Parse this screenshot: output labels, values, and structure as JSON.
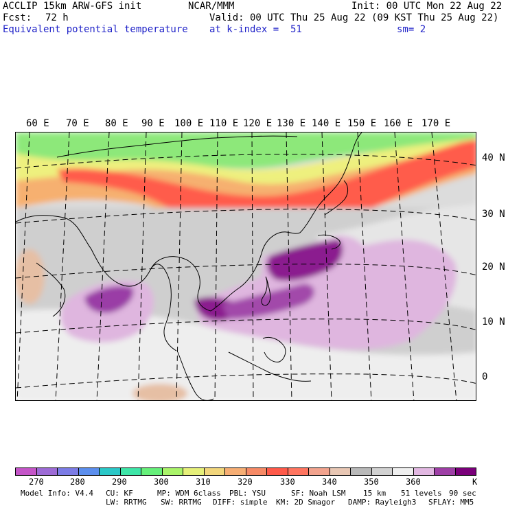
{
  "header": {
    "model": "ACCLIP 15km ARW-GFS init",
    "org": "NCAR/MMM",
    "init": "Init: 00 UTC Mon 22 Aug 22",
    "fcst_label": "Fcst:",
    "fcst_value": "72 h",
    "valid": "Valid: 00 UTC Thu 25 Aug 22 (09 KST Thu 25 Aug 22)",
    "field": "Equivalent potential temperature",
    "level": "at k-index =  51",
    "smooth": "sm= 2"
  },
  "map": {
    "lon_labels": [
      "60 E",
      "70 E",
      "80 E",
      "90 E",
      "100 E",
      "110 E",
      "120 E",
      "130 E",
      "140 E",
      "150 E",
      "160 E",
      "170 E"
    ],
    "lat_labels": [
      "40 N",
      "30 N",
      "20 N",
      "10 N",
      "0"
    ]
  },
  "colorbar": {
    "unit": "K",
    "tick_labels": [
      "270",
      "280",
      "290",
      "300",
      "310",
      "320",
      "330",
      "340",
      "350",
      "360"
    ],
    "colors": [
      "#c455c8",
      "#9d6bd6",
      "#7c7ce6",
      "#5c8fee",
      "#2bc8c8",
      "#3ee6a8",
      "#66f07a",
      "#aaf46a",
      "#e6f07a",
      "#f2d67c",
      "#f6ae74",
      "#f68a66",
      "#ff5a4a",
      "#ff7560",
      "#f2a38e",
      "#e8c7b4",
      "#b9b9b9",
      "#d2d2d2",
      "#efefef",
      "#e2b8e2",
      "#9e3fa6",
      "#7a007a"
    ]
  },
  "footer": {
    "line1": [
      "Model Info: V4.4",
      "CU: KF",
      "MP: WDM 6class",
      "PBL: YSU",
      "SF: Noah LSM",
      "15 km",
      "51 levels",
      "90 sec"
    ],
    "line2": [
      "LW: RRTMG",
      "SW: RRTMG",
      "DIFF: simple",
      "KM: 2D Smagor",
      "DAMP: Rayleigh3",
      "SFLAY: MM5"
    ]
  }
}
